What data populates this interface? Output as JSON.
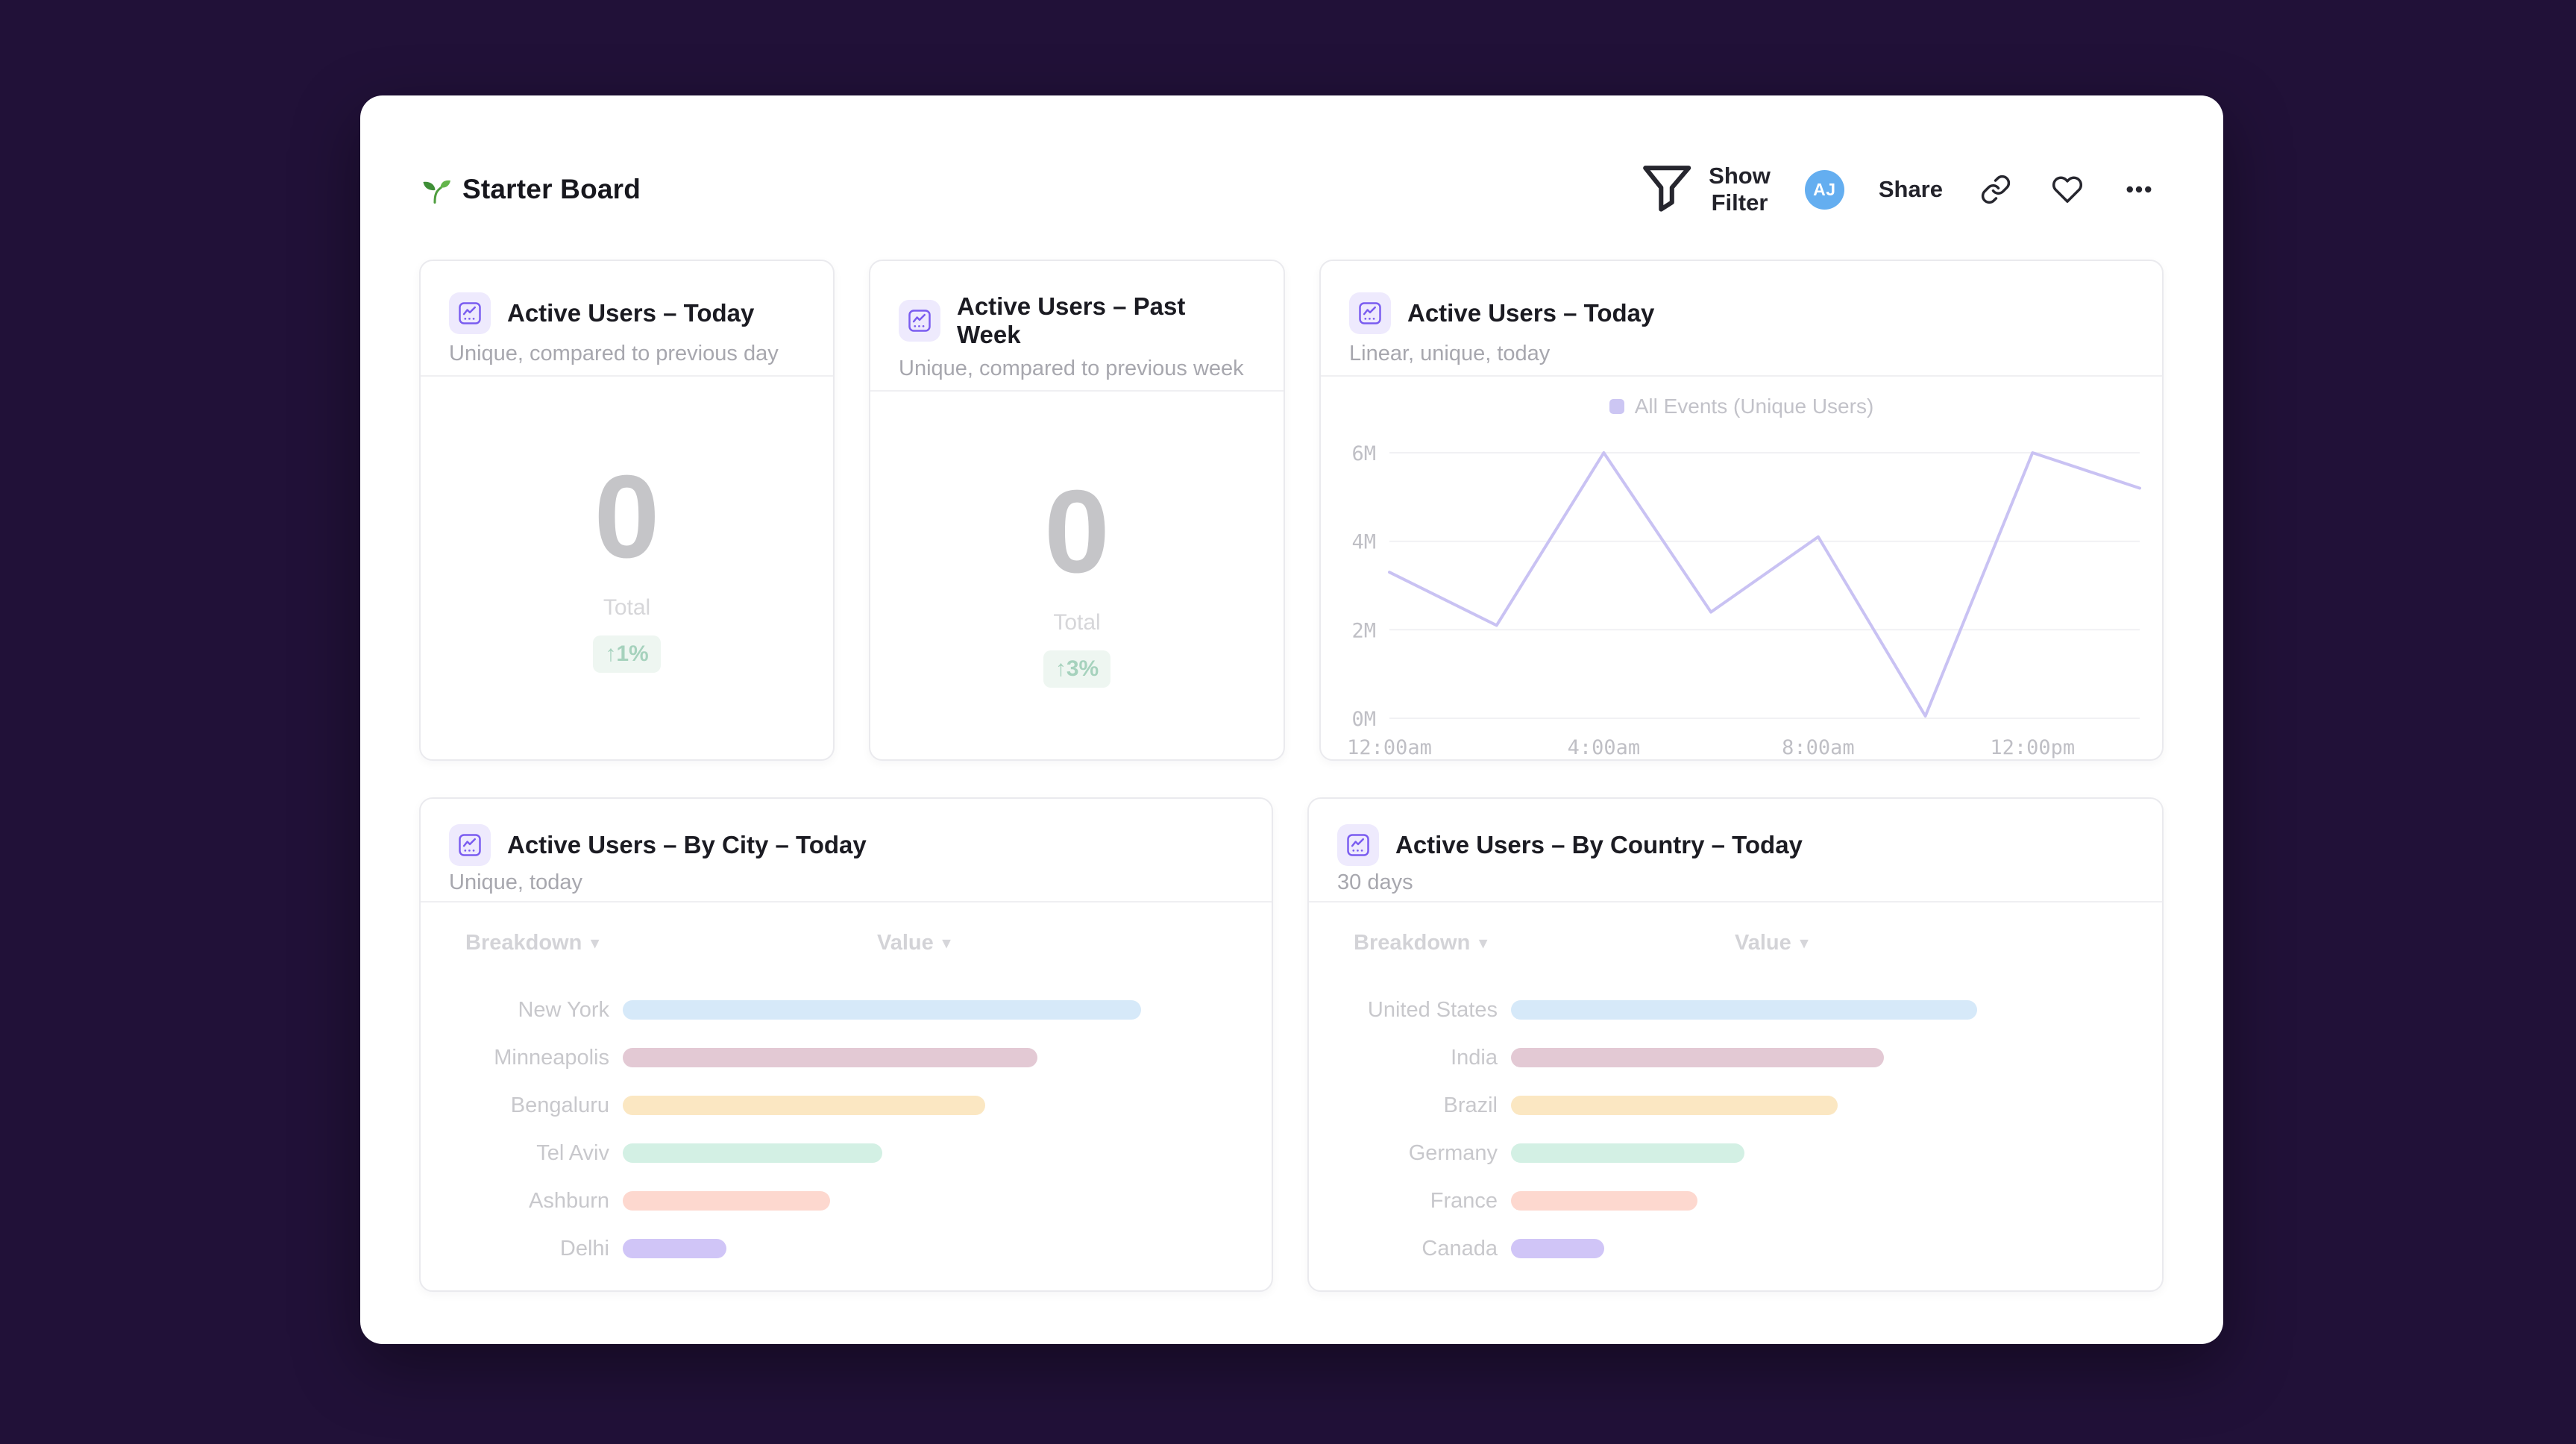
{
  "page": {
    "title": "Starter Board"
  },
  "header": {
    "show_filter_label": "Show Filter",
    "avatar_initials": "AJ",
    "share_label": "Share"
  },
  "colors": {
    "background": "#211138",
    "surface": "#ffffff",
    "accent_purple": "#7a5cf0",
    "accent_purple_bg": "#eeeafd",
    "avatar_blue": "#64aef0",
    "delta_green_text": "#a6d2bd",
    "delta_green_bg": "#eef6f1",
    "line_series": "#c9c2f3",
    "legend_swatch": "#ccc6f3",
    "grid_line": "#f1f1f4",
    "card_border": "#eaeaee"
  },
  "cards": {
    "today_total": {
      "title": "Active Users – Today",
      "subtitle": "Unique, compared to previous day",
      "value": "0",
      "value_label": "Total",
      "delta": "↑1%"
    },
    "past_week_total": {
      "title": "Active Users – Past Week",
      "subtitle": "Unique, compared to previous week",
      "value": "0",
      "value_label": "Total",
      "delta": "↑3%"
    },
    "today_linear": {
      "title": "Active Users – Today",
      "subtitle": "Linear, unique, today"
    },
    "by_city": {
      "title": "Active Users – By City – Today",
      "subtitle": "Unique, today",
      "breakdown_label": "Breakdown",
      "value_label": "Value"
    },
    "by_country": {
      "title": "Active Users – By Country – Today",
      "subtitle": "30 days",
      "breakdown_label": "Breakdown",
      "value_label": "Value"
    }
  },
  "chart_data": [
    {
      "id": "active_users_line",
      "type": "line",
      "title": "Active Users – Today",
      "subtitle": "Linear, unique, today",
      "legend": [
        {
          "label": "All Events (Unique Users)",
          "color": "#ccc6f3"
        }
      ],
      "legend_position": "top-center",
      "grid": "horizontal",
      "ylim": [
        0,
        6
      ],
      "y_unit": "millions",
      "y_ticks": [
        0,
        2,
        4,
        6
      ],
      "y_tick_labels": [
        "0M",
        "2M",
        "4M",
        "6M"
      ],
      "x_tick_labels": [
        "12:00am",
        "4:00am",
        "8:00am",
        "12:00pm"
      ],
      "x_tick_indices": [
        0,
        2,
        4,
        6
      ],
      "points_per_tick": 2,
      "series": [
        {
          "name": "All Events (Unique Users)",
          "color": "#c9c2f3",
          "values_millions": [
            3.3,
            2.1,
            6.0,
            2.4,
            4.1,
            0.05,
            6.0,
            5.2
          ]
        }
      ]
    },
    {
      "id": "by_city",
      "type": "bar",
      "orientation": "horizontal",
      "title": "Active Users – By City – Today",
      "categories": [
        "New York",
        "Minneapolis",
        "Bengaluru",
        "Tel Aviv",
        "Ashburn",
        "Delhi"
      ],
      "values_relative": [
        1.0,
        0.8,
        0.7,
        0.5,
        0.4,
        0.2
      ],
      "bar_colors": [
        "#d6e9f9",
        "#e3c9d4",
        "#fbe7c2",
        "#d3f0e4",
        "#fdd8cf",
        "#d0c5f7"
      ],
      "note": "no numeric axis shown; values are relative bar lengths"
    },
    {
      "id": "by_country",
      "type": "bar",
      "orientation": "horizontal",
      "title": "Active Users – By Country – Today",
      "categories": [
        "United States",
        "India",
        "Brazil",
        "Germany",
        "France",
        "Canada"
      ],
      "values_relative": [
        1.0,
        0.8,
        0.7,
        0.5,
        0.4,
        0.2
      ],
      "bar_colors": [
        "#d6e9f9",
        "#e3c9d4",
        "#fbe7c2",
        "#d3f0e4",
        "#fdd8cf",
        "#d0c5f7"
      ],
      "note": "no numeric axis shown; values are relative bar lengths"
    }
  ]
}
